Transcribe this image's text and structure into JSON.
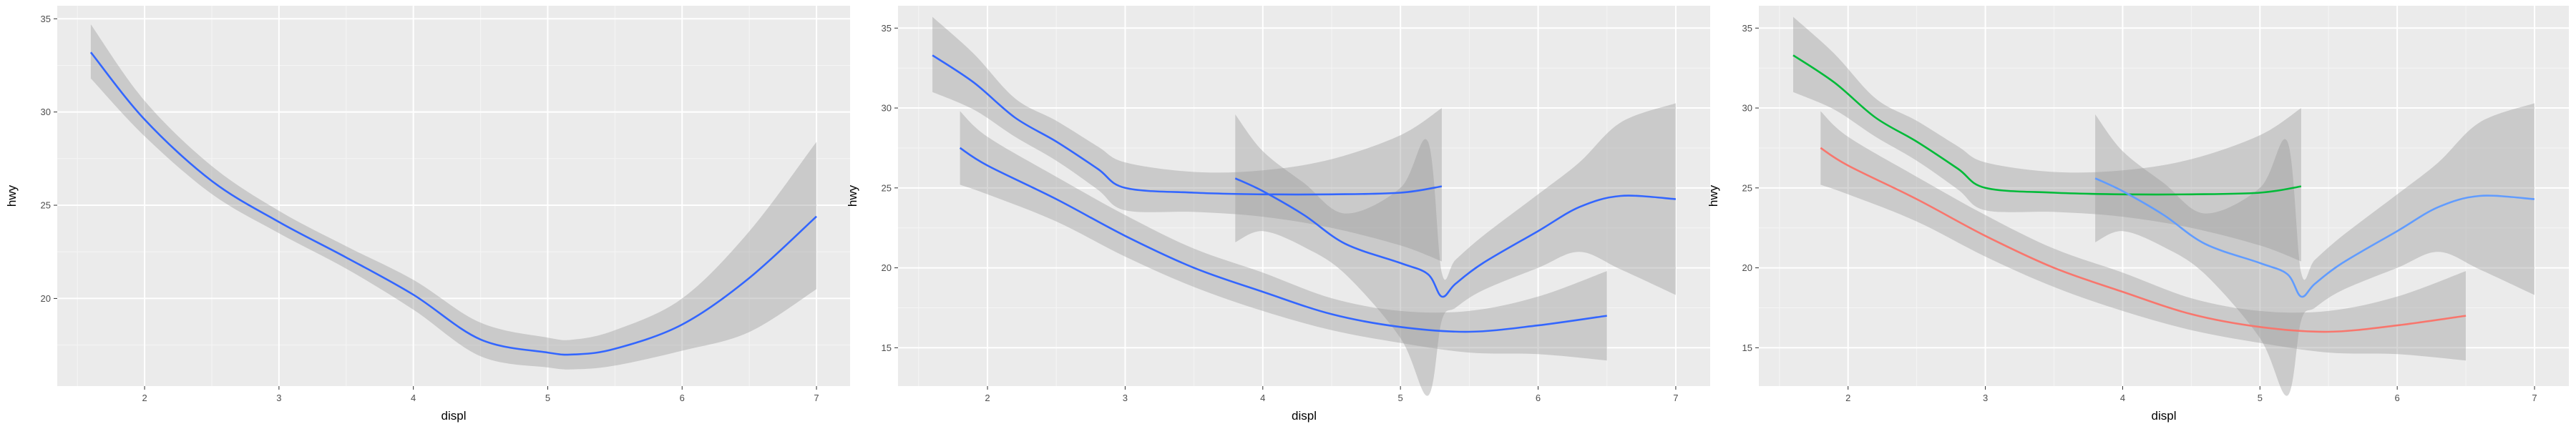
{
  "chart_data": [
    {
      "type": "line",
      "xlabel": "displ",
      "ylabel": "hwy",
      "xlim": [
        1.35,
        7.25
      ],
      "ylim": [
        15.3,
        35.7
      ],
      "x_ticks": [
        2,
        3,
        4,
        5,
        6,
        7
      ],
      "y_ticks": [
        20,
        25,
        30,
        35
      ],
      "grid": true,
      "legend": "none",
      "series": [
        {
          "color": "#3366FF",
          "x": [
            1.6,
            2.0,
            2.5,
            3.0,
            3.5,
            4.0,
            4.5,
            5.0,
            5.2,
            5.5,
            6.0,
            6.5,
            7.0
          ],
          "y": [
            33.2,
            29.6,
            26.3,
            24.1,
            22.2,
            20.2,
            17.8,
            17.1,
            17.0,
            17.3,
            18.6,
            21.1,
            24.4
          ],
          "lower": [
            31.8,
            28.7,
            25.6,
            23.5,
            21.6,
            19.4,
            16.9,
            16.3,
            16.2,
            16.4,
            17.2,
            18.2,
            20.5
          ],
          "upper": [
            34.7,
            30.6,
            27.1,
            24.7,
            22.8,
            21.0,
            18.7,
            17.9,
            17.8,
            18.3,
            20.0,
            23.6,
            28.4
          ]
        }
      ]
    },
    {
      "type": "line",
      "xlabel": "displ",
      "ylabel": "hwy",
      "xlim": [
        1.35,
        7.25
      ],
      "ylim": [
        12.6,
        36.4
      ],
      "x_ticks": [
        2,
        3,
        4,
        5,
        6,
        7
      ],
      "y_ticks": [
        15,
        20,
        25,
        30,
        35
      ],
      "grid": true,
      "legend": "none",
      "series": [
        {
          "color": "#3366FF",
          "x": [
            1.6,
            1.9,
            2.2,
            2.5,
            2.8,
            3.0,
            3.5,
            4.0,
            4.5,
            5.0,
            5.3
          ],
          "y": [
            33.3,
            31.6,
            29.4,
            27.9,
            26.2,
            25.0,
            24.7,
            24.6,
            24.6,
            24.7,
            25.1
          ],
          "lower": [
            31.0,
            29.9,
            28.2,
            26.7,
            24.9,
            23.6,
            23.5,
            23.2,
            22.5,
            21.4,
            20.4
          ],
          "upper": [
            35.7,
            33.4,
            30.6,
            29.2,
            27.6,
            26.6,
            26.0,
            26.1,
            26.8,
            28.3,
            30.0
          ]
        },
        {
          "color": "#3366FF",
          "x": [
            1.8,
            2.0,
            2.5,
            3.0,
            3.5,
            4.0,
            4.5,
            5.0,
            5.5,
            6.0,
            6.5
          ],
          "y": [
            27.5,
            26.4,
            24.3,
            22.0,
            20.0,
            18.5,
            17.1,
            16.3,
            16.0,
            16.4,
            17.0
          ],
          "lower": [
            25.2,
            24.6,
            22.9,
            20.7,
            18.8,
            17.3,
            16.1,
            15.3,
            14.7,
            14.6,
            14.2
          ],
          "upper": [
            29.8,
            28.2,
            25.7,
            23.3,
            21.2,
            19.7,
            18.1,
            17.3,
            17.3,
            18.2,
            19.8
          ]
        },
        {
          "color": "#3366FF",
          "x": [
            3.8,
            4.0,
            4.3,
            4.6,
            5.0,
            5.2,
            5.3,
            5.4,
            5.6,
            6.0,
            6.3,
            6.6,
            7.0
          ],
          "y": [
            25.6,
            24.8,
            23.3,
            21.5,
            20.3,
            19.6,
            18.2,
            19.0,
            20.3,
            22.3,
            23.8,
            24.5,
            24.3
          ],
          "lower": [
            21.6,
            22.3,
            21.3,
            19.6,
            15.6,
            12.0,
            16.7,
            17.5,
            18.6,
            20.0,
            21.0,
            19.9,
            18.3
          ],
          "upper": [
            29.6,
            27.3,
            25.3,
            23.4,
            25.0,
            27.9,
            19.7,
            20.5,
            22.0,
            24.6,
            26.6,
            29.1,
            30.3
          ]
        }
      ]
    },
    {
      "type": "line",
      "xlabel": "displ",
      "ylabel": "hwy",
      "xlim": [
        1.35,
        7.25
      ],
      "ylim": [
        12.6,
        36.4
      ],
      "x_ticks": [
        2,
        3,
        4,
        5,
        6,
        7
      ],
      "y_ticks": [
        15,
        20,
        25,
        30,
        35
      ],
      "grid": true,
      "legend": "none",
      "series": [
        {
          "color": "#00BA38",
          "x": [
            1.6,
            1.9,
            2.2,
            2.5,
            2.8,
            3.0,
            3.5,
            4.0,
            4.5,
            5.0,
            5.3
          ],
          "y": [
            33.3,
            31.6,
            29.4,
            27.9,
            26.2,
            25.0,
            24.7,
            24.6,
            24.6,
            24.7,
            25.1
          ],
          "lower": [
            31.0,
            29.9,
            28.2,
            26.7,
            24.9,
            23.6,
            23.5,
            23.2,
            22.5,
            21.4,
            20.4
          ],
          "upper": [
            35.7,
            33.4,
            30.6,
            29.2,
            27.6,
            26.6,
            26.0,
            26.1,
            26.8,
            28.3,
            30.0
          ]
        },
        {
          "color": "#F8766D",
          "x": [
            1.8,
            2.0,
            2.5,
            3.0,
            3.5,
            4.0,
            4.5,
            5.0,
            5.5,
            6.0,
            6.5
          ],
          "y": [
            27.5,
            26.4,
            24.3,
            22.0,
            20.0,
            18.5,
            17.1,
            16.3,
            16.0,
            16.4,
            17.0
          ],
          "lower": [
            25.2,
            24.6,
            22.9,
            20.7,
            18.8,
            17.3,
            16.1,
            15.3,
            14.7,
            14.6,
            14.2
          ],
          "upper": [
            29.8,
            28.2,
            25.7,
            23.3,
            21.2,
            19.7,
            18.1,
            17.3,
            17.3,
            18.2,
            19.8
          ]
        },
        {
          "color": "#619CFF",
          "x": [
            3.8,
            4.0,
            4.3,
            4.6,
            5.0,
            5.2,
            5.3,
            5.4,
            5.6,
            6.0,
            6.3,
            6.6,
            7.0
          ],
          "y": [
            25.6,
            24.8,
            23.3,
            21.5,
            20.3,
            19.6,
            18.2,
            19.0,
            20.3,
            22.3,
            23.8,
            24.5,
            24.3
          ],
          "lower": [
            21.6,
            22.3,
            21.3,
            19.6,
            15.6,
            12.0,
            16.7,
            17.5,
            18.6,
            20.0,
            21.0,
            19.9,
            18.3
          ],
          "upper": [
            29.6,
            27.3,
            25.3,
            23.4,
            25.0,
            27.9,
            19.7,
            20.5,
            22.0,
            24.6,
            26.6,
            29.1,
            30.3
          ]
        }
      ]
    }
  ],
  "style": {
    "panel_background": "#EBEBEB",
    "grid_major": "#FFFFFF",
    "grid_minor": "#F5F5F5",
    "ribbon_fill": "#999999",
    "ribbon_opacity": 0.4,
    "tick_color": "#333333"
  }
}
